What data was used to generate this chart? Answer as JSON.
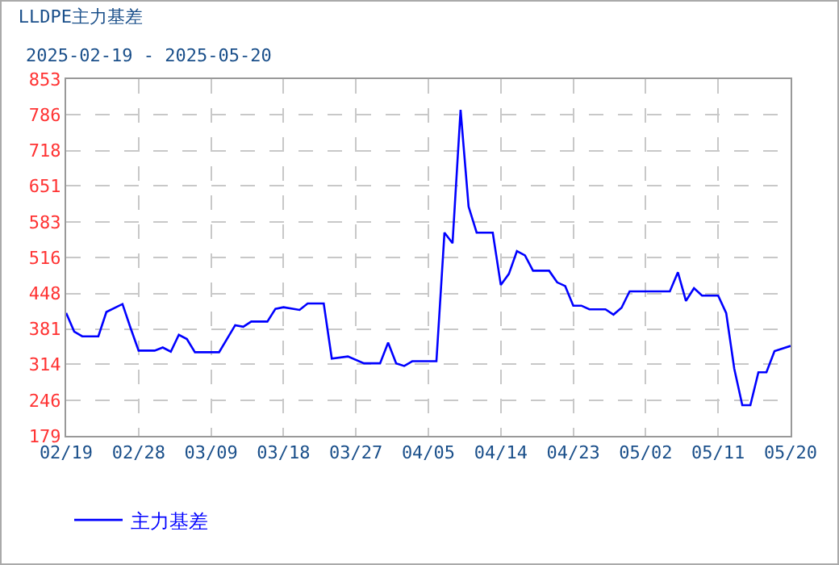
{
  "chart_data": {
    "type": "line",
    "title": "LLDPE主力基差",
    "subtitle": "2025-02-19 - 2025-05-20",
    "x": [
      "2025-02-19",
      "2025-02-20",
      "2025-02-21",
      "2025-02-23",
      "2025-02-24",
      "2025-02-26",
      "2025-02-27",
      "2025-02-28",
      "2025-03-02",
      "2025-03-03",
      "2025-03-04",
      "2025-03-05",
      "2025-03-06",
      "2025-03-07",
      "2025-03-10",
      "2025-03-12",
      "2025-03-13",
      "2025-03-14",
      "2025-03-16",
      "2025-03-17",
      "2025-03-18",
      "2025-03-20",
      "2025-03-21",
      "2025-03-23",
      "2025-03-24",
      "2025-03-26",
      "2025-03-28",
      "2025-03-30",
      "2025-03-31",
      "2025-04-01",
      "2025-04-02",
      "2025-04-03",
      "2025-04-06",
      "2025-04-07",
      "2025-04-08",
      "2025-04-09",
      "2025-04-10",
      "2025-04-11",
      "2025-04-13",
      "2025-04-14",
      "2025-04-15",
      "2025-04-16",
      "2025-04-17",
      "2025-04-18",
      "2025-04-20",
      "2025-04-21",
      "2025-04-22",
      "2025-04-23",
      "2025-04-24",
      "2025-04-25",
      "2025-04-27",
      "2025-04-28",
      "2025-04-29",
      "2025-04-30",
      "2025-05-05",
      "2025-05-06",
      "2025-05-07",
      "2025-05-08",
      "2025-05-09",
      "2025-05-11",
      "2025-05-12",
      "2025-05-13",
      "2025-05-14",
      "2025-05-15",
      "2025-05-16",
      "2025-05-17",
      "2025-05-18",
      "2025-05-20"
    ],
    "series": [
      {
        "name": "主力基差",
        "color": "#0000ff",
        "values": [
          411,
          376,
          367,
          367,
          413,
          428,
          383,
          340,
          340,
          346,
          338,
          370,
          362,
          337,
          337,
          388,
          385,
          395,
          395,
          419,
          422,
          417,
          429,
          429,
          325,
          329,
          316,
          316,
          355,
          316,
          311,
          320,
          320,
          563,
          543,
          795,
          612,
          563,
          563,
          464,
          485,
          528,
          520,
          491,
          491,
          469,
          462,
          425,
          425,
          418,
          418,
          408,
          421,
          452,
          452,
          488,
          434,
          458,
          444,
          444,
          411,
          306,
          237,
          237,
          299,
          299,
          339,
          349
        ]
      }
    ],
    "xlim": [
      "2025-02-19",
      "2025-05-20"
    ],
    "xticks": [
      {
        "value": "2025-02-19",
        "label": "02/19"
      },
      {
        "value": "2025-02-28",
        "label": "02/28"
      },
      {
        "value": "2025-03-09",
        "label": "03/09"
      },
      {
        "value": "2025-03-18",
        "label": "03/18"
      },
      {
        "value": "2025-03-27",
        "label": "03/27"
      },
      {
        "value": "2025-04-05",
        "label": "04/05"
      },
      {
        "value": "2025-04-14",
        "label": "04/14"
      },
      {
        "value": "2025-04-23",
        "label": "04/23"
      },
      {
        "value": "2025-05-02",
        "label": "05/02"
      },
      {
        "value": "2025-05-11",
        "label": "05/11"
      },
      {
        "value": "2025-05-20",
        "label": "05/20"
      }
    ],
    "ylim": [
      179,
      853
    ],
    "yticks": [
      179,
      246,
      314,
      381,
      448,
      516,
      583,
      651,
      718,
      786,
      853
    ],
    "grid": true,
    "legend": "bottom left",
    "marker": "none",
    "line_style": "solid"
  }
}
